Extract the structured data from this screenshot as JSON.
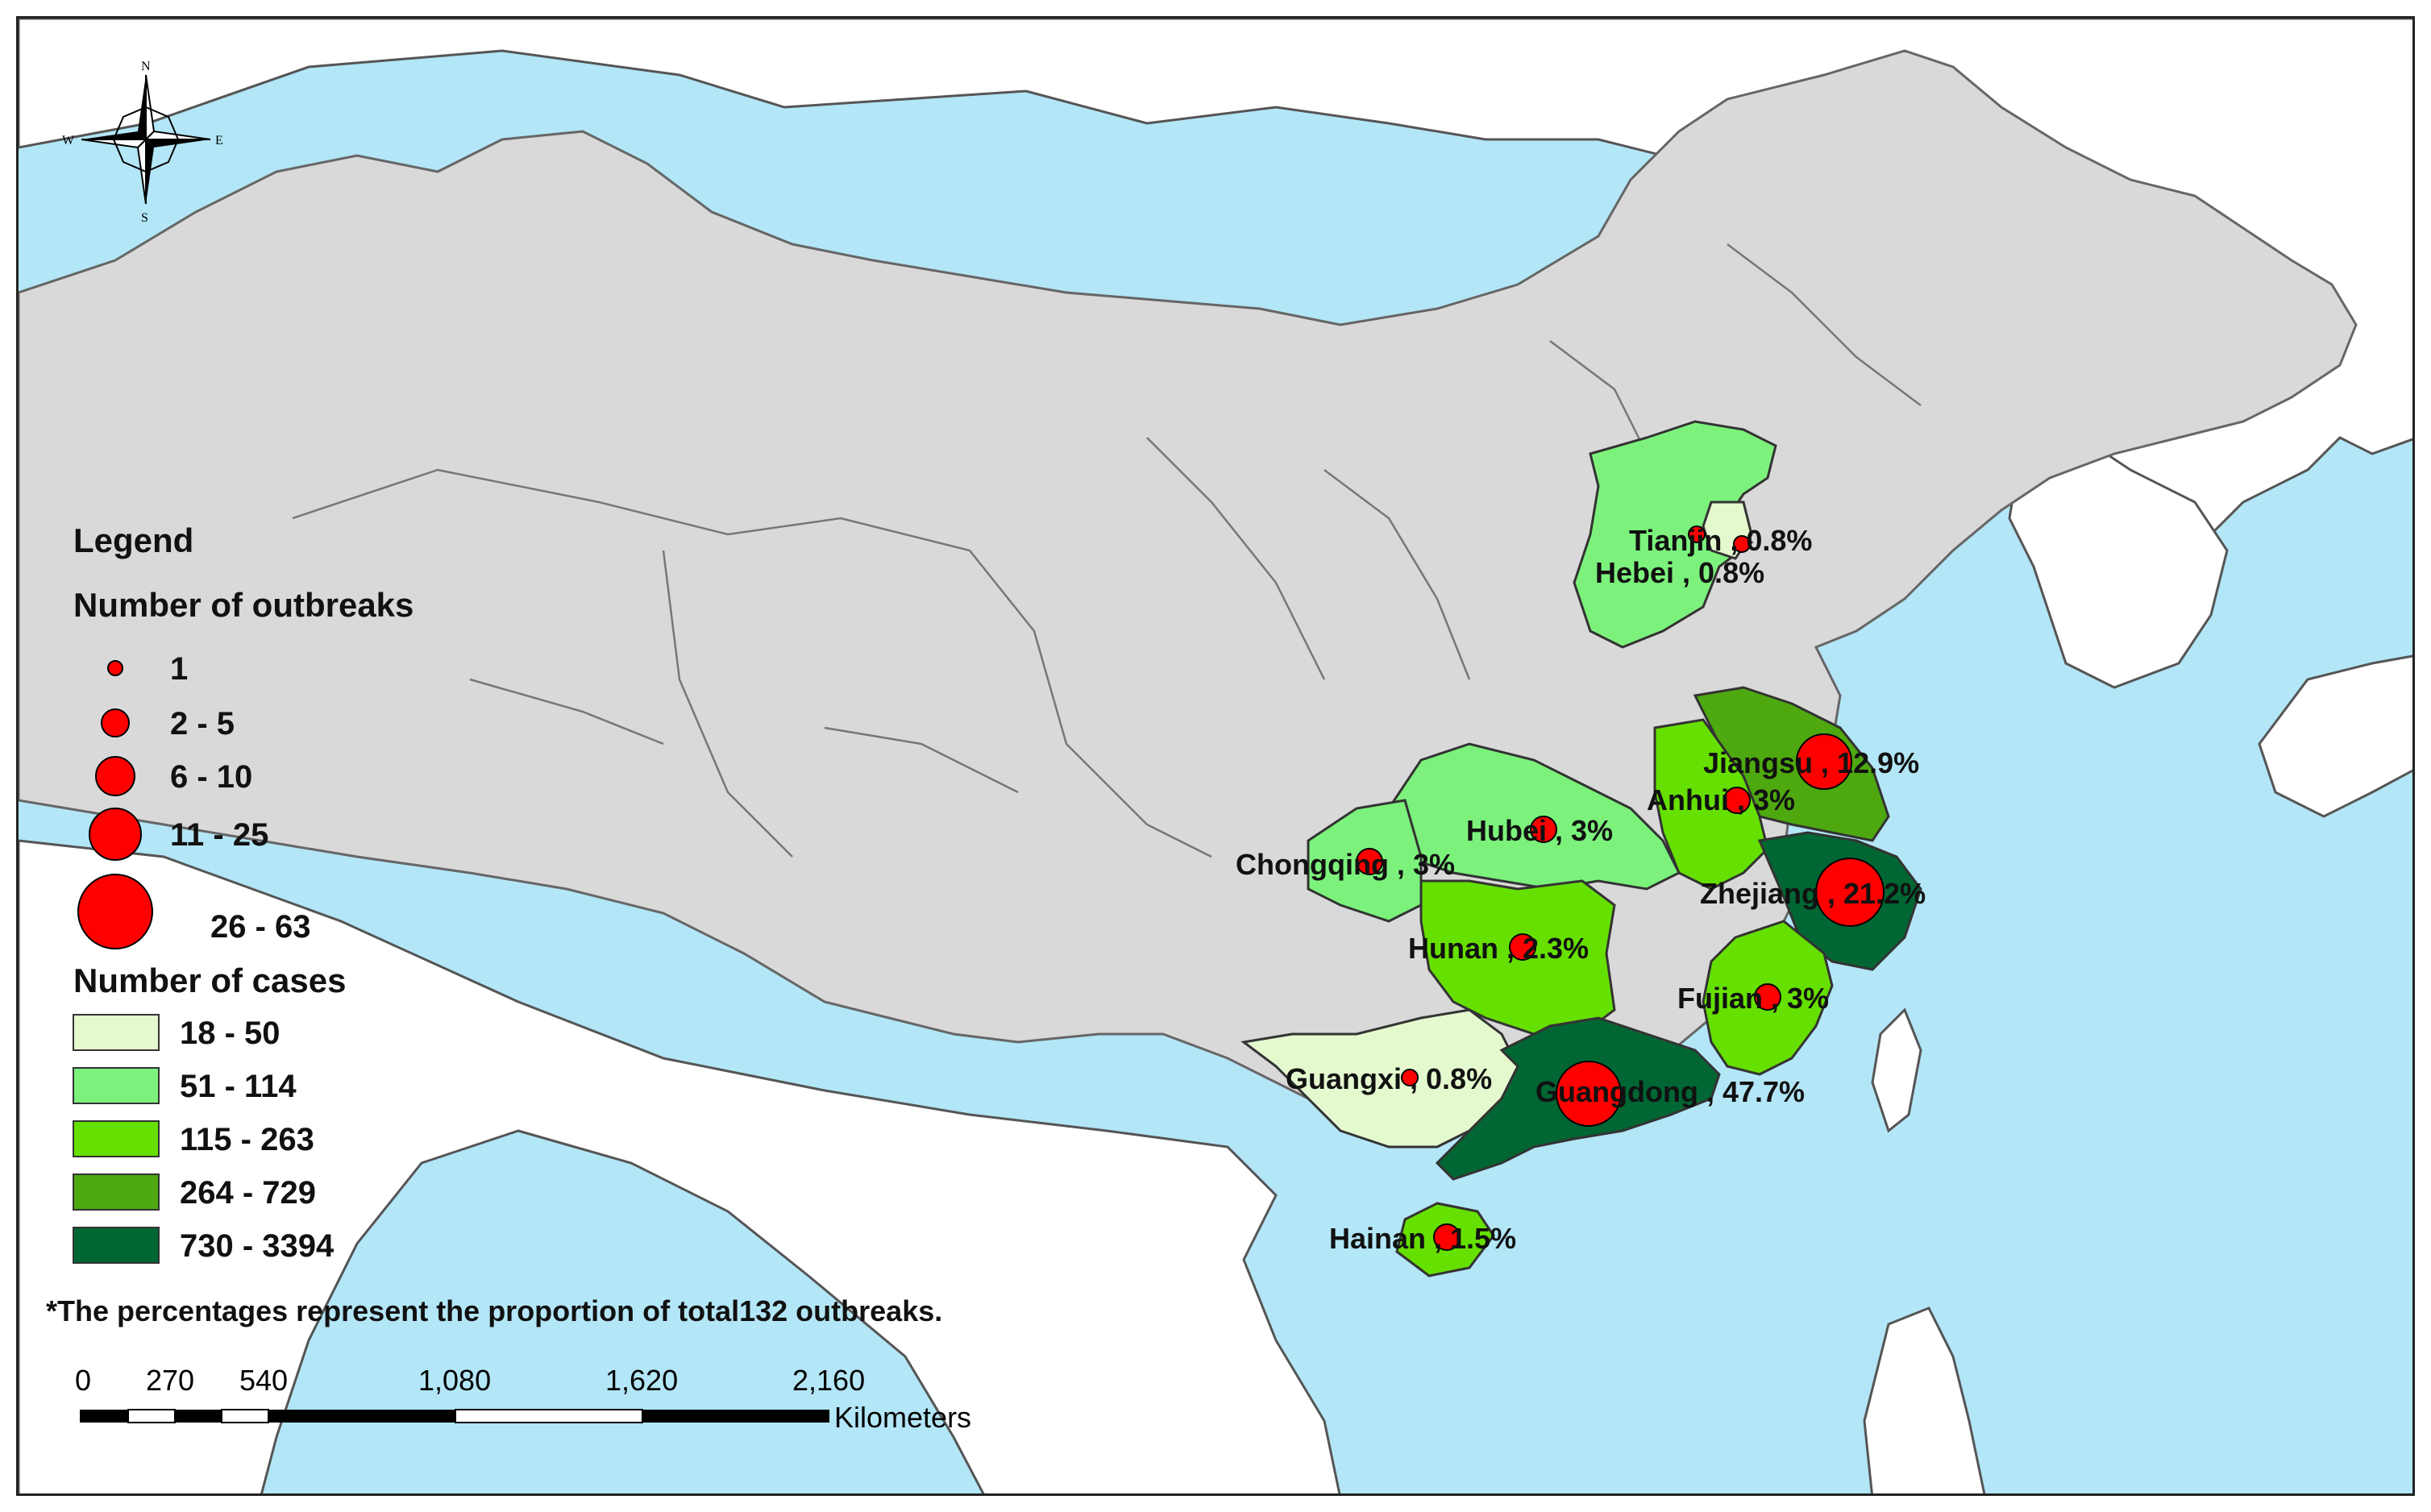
{
  "legend": {
    "title": "Legend",
    "outbreaks_title": "Number of outbreaks",
    "outbreak_classes": [
      "1",
      "2 - 5",
      "6 - 10",
      "11 - 25",
      "26 - 63"
    ],
    "cases_title": "Number of cases",
    "case_classes": [
      {
        "label": "18 - 50",
        "color": "#e5f9cf"
      },
      {
        "label": "51 - 114",
        "color": "#7cf27c"
      },
      {
        "label": "115 - 263",
        "color": "#66e000"
      },
      {
        "label": "264 - 729",
        "color": "#4ea80f"
      },
      {
        "label": "730 - 3394",
        "color": "#006633"
      }
    ]
  },
  "footnote": "*The percentages represent the proportion of total132 outbreaks.",
  "scale_bar": {
    "ticks": [
      "0",
      "270",
      "540",
      "1,080",
      "1,620",
      "2,160"
    ],
    "unit": "Kilometers"
  },
  "compass": {
    "n": "N",
    "s": "S",
    "e": "E",
    "w": "W"
  },
  "provinces": [
    {
      "id": "tianjin",
      "label": "Tianjin , 0.8%",
      "cases_class": "18 - 50"
    },
    {
      "id": "hebei",
      "label": "Hebei , 0.8%",
      "cases_class": "51 - 114"
    },
    {
      "id": "jiangsu",
      "label": "Jiangsu , 12.9%",
      "cases_class": "264 - 729"
    },
    {
      "id": "anhui",
      "label": "Anhui , 3%",
      "cases_class": "115 - 263"
    },
    {
      "id": "hubei",
      "label": "Hubei , 3%",
      "cases_class": "51 - 114"
    },
    {
      "id": "chongqing",
      "label": "Chongqing , 3%",
      "cases_class": "51 - 114"
    },
    {
      "id": "zhejiang",
      "label": "Zhejiang , 21.2%",
      "cases_class": "730 - 3394"
    },
    {
      "id": "hunan",
      "label": "Hunan , 2.3%",
      "cases_class": "115 - 263"
    },
    {
      "id": "fujian",
      "label": "Fujian , 3%",
      "cases_class": "115 - 263"
    },
    {
      "id": "guangxi",
      "label": "Guangxi , 0.8%",
      "cases_class": "18 - 50"
    },
    {
      "id": "guangdong",
      "label": "Guangdong , 47.7%",
      "cases_class": "730 - 3394"
    },
    {
      "id": "hainan",
      "label": "Hainan , 1.5%",
      "cases_class": "115 - 263"
    }
  ],
  "colors": {
    "sea": "#b3e6f7",
    "land_other": "#d9d9d9",
    "land_foreign": "#ffffff",
    "symbol": "#ff0000"
  }
}
